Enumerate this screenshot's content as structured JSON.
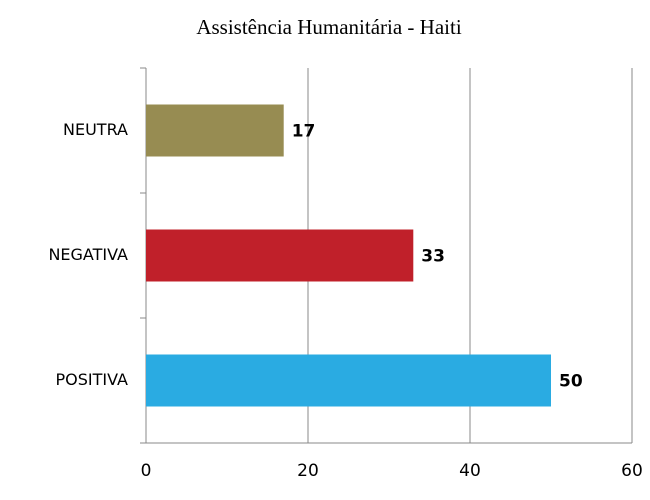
{
  "chart_data": {
    "type": "bar",
    "orientation": "horizontal",
    "title": "Assistência Humanitária - Haiti",
    "categories": [
      "NEUTRA",
      "NEGATIVA",
      "POSITIVA"
    ],
    "values": [
      17,
      33,
      50
    ],
    "colors": [
      "#978c52",
      "#c0202a",
      "#2aabe2"
    ],
    "xlim": [
      0,
      60
    ],
    "xticks": [
      0,
      20,
      40,
      60
    ],
    "grid": true
  }
}
